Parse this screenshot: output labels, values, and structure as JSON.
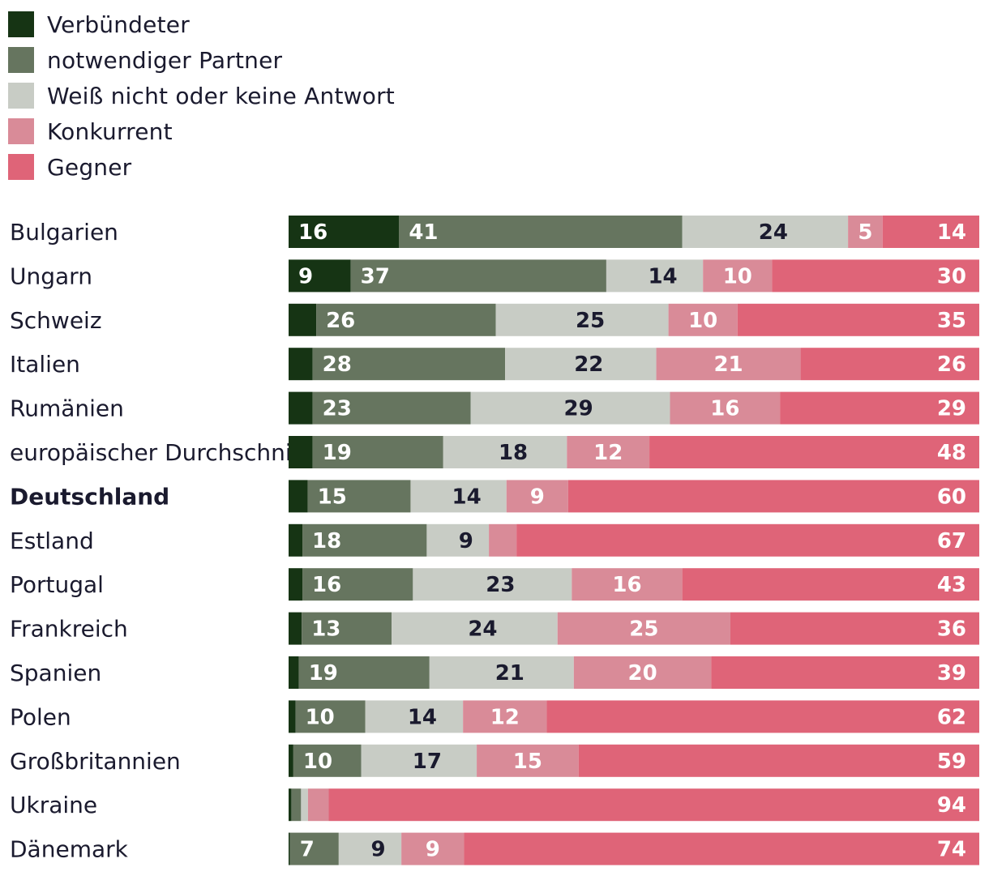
{
  "chart_data": {
    "type": "bar",
    "orientation": "horizontal",
    "stacked": true,
    "normalized": true,
    "title": "",
    "xlabel": "",
    "ylabel": "",
    "categories": [
      "Bulgarien",
      "Ungarn",
      "Schweiz",
      "Italien",
      "Rumänien",
      "europäischer Durchschnitt",
      "Deutschland",
      "Estland",
      "Portugal",
      "Frankreich",
      "Spanien",
      "Polen",
      "Großbritannien",
      "Ukraine",
      "Dänemark"
    ],
    "highlight_category": "Deutschland",
    "series": [
      {
        "name": "Verbündeter",
        "color": "#163414",
        "label_color": "#ffffff",
        "values": [
          16,
          9,
          4,
          3.5,
          3.5,
          3.5,
          2.8,
          2,
          2,
          1.9,
          1.5,
          1,
          0.7,
          0.4,
          0.2
        ],
        "labels": [
          "16",
          "9",
          "",
          "",
          "",
          "",
          "",
          "",
          "",
          "",
          "",
          "",
          "",
          "",
          ""
        ]
      },
      {
        "name": "notwendiger Partner",
        "color": "#66755f",
        "label_color": "#ffffff",
        "values": [
          41,
          37,
          26,
          28,
          23,
          19,
          15,
          18,
          16,
          13,
          19,
          10,
          10,
          1.4,
          7
        ],
        "labels": [
          "41",
          "37",
          "26",
          "28",
          "23",
          "19",
          "15",
          "18",
          "16",
          "13",
          "19",
          "10",
          "10",
          "",
          "7"
        ]
      },
      {
        "name": "Weiß nicht oder keine Antwort",
        "color": "#c8ccc5",
        "label_color": "#1a1a2e",
        "values": [
          24,
          14,
          25,
          22,
          29,
          18,
          14,
          9,
          23,
          24,
          21,
          14,
          17,
          1,
          9
        ],
        "labels": [
          "24",
          "14",
          "25",
          "22",
          "29",
          "18",
          "14",
          "9",
          "23",
          "24",
          "21",
          "14",
          "17",
          "",
          "9"
        ]
      },
      {
        "name": "Konkurrent",
        "color": "#d98b98",
        "label_color": "#ffffff",
        "values": [
          5,
          10,
          10,
          21,
          16,
          12,
          9,
          4,
          16,
          25,
          20,
          12,
          15,
          3,
          9
        ],
        "labels": [
          "5",
          "10",
          "10",
          "21",
          "16",
          "12",
          "9",
          "",
          "16",
          "25",
          "20",
          "12",
          "15",
          "",
          "9"
        ]
      },
      {
        "name": "Gegner",
        "color": "#df6478",
        "label_color": "#ffffff",
        "values": [
          14,
          30,
          35,
          26,
          29,
          48,
          60,
          67,
          43,
          36,
          39,
          62,
          59,
          94,
          74
        ],
        "labels": [
          "14",
          "30",
          "35",
          "26",
          "29",
          "48",
          "60",
          "67",
          "43",
          "36",
          "39",
          "62",
          "59",
          "94",
          "74"
        ]
      }
    ],
    "legend": "top-left",
    "grid": false
  }
}
